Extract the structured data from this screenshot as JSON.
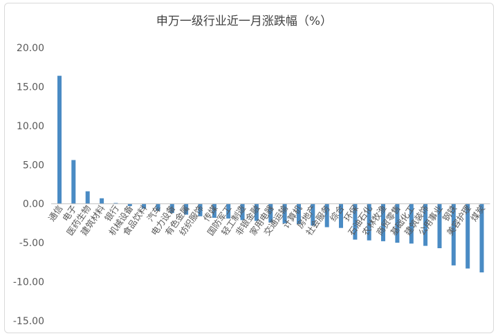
{
  "chart_data": {
    "type": "bar",
    "title": "申万一级行业近一月涨跌幅（%）",
    "xlabel": "",
    "ylabel": "",
    "ylim": [
      -15,
      20
    ],
    "yticks": [
      "20.00",
      "15.00",
      "10.00",
      "5.00",
      "0.00",
      "-5.00",
      "-10.00",
      "-15.00"
    ],
    "grid": false,
    "bar_color": "#4a8bc4",
    "categories": [
      "通信",
      "电子",
      "医药生物",
      "建筑材料",
      "银行",
      "机械设备",
      "食品饮料",
      "汽车",
      "电力设备",
      "有色金属",
      "纺织服饰",
      "传媒",
      "国防军工",
      "轻工制造",
      "非银金融",
      "家用电器",
      "交通运输",
      "计算机",
      "房地产",
      "社会服务",
      "综合",
      "环保",
      "石油石化",
      "农林牧渔",
      "商贸零售",
      "基础化工",
      "建筑装饰",
      "公用事业",
      "钢铁",
      "美容护理",
      "煤炭"
    ],
    "values": [
      16.4,
      5.6,
      1.6,
      0.7,
      0.1,
      -0.3,
      -0.6,
      -0.9,
      -1.2,
      -1.4,
      -1.6,
      -1.8,
      -1.9,
      -2.1,
      -2.2,
      -2.4,
      -2.5,
      -2.6,
      -2.8,
      -3.0,
      -3.1,
      -4.6,
      -4.7,
      -4.8,
      -5.0,
      -5.1,
      -5.4,
      -5.7,
      -7.9,
      -8.3,
      -8.8
    ]
  }
}
